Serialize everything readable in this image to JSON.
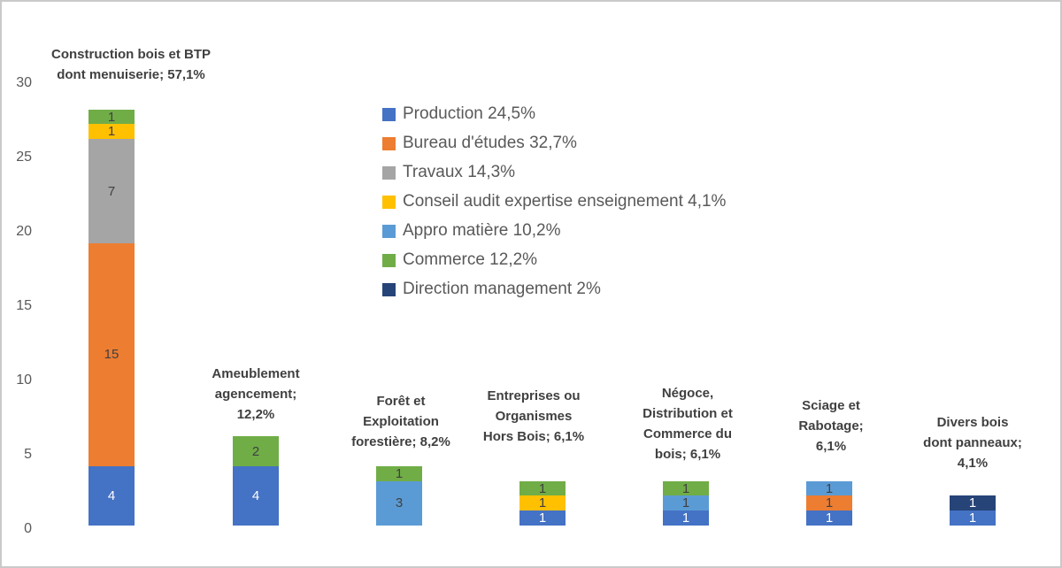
{
  "chart_data": {
    "type": "stacked-bar",
    "title": "",
    "gridlines": false,
    "legend_position": "upper-center",
    "legend_text_color": "#595959",
    "axis_text_color": "#595959",
    "category_label_color": "#404040",
    "y_axis": {
      "min": 0,
      "max": 30,
      "tick_interval": 5,
      "ticks": [
        "0",
        "5",
        "10",
        "15",
        "20",
        "25",
        "30"
      ]
    },
    "categories": [
      {
        "id": "construction-bois-btp",
        "label_lines": [
          "Construction bois et BTP",
          "dont menuiserie; 57,1%"
        ],
        "percent": "57,1%",
        "total": 28
      },
      {
        "id": "ameublement-agencement",
        "label_lines": [
          "Ameublement",
          "agencement;",
          "12,2%"
        ],
        "percent": "12,2%",
        "total": 6
      },
      {
        "id": "foret-exploitation-forestiere",
        "label_lines": [
          "Forêt et",
          "Exploitation",
          "forestière; 8,2%"
        ],
        "percent": "8,2%",
        "total": 4
      },
      {
        "id": "entreprises-organismes-hors-bois",
        "label_lines": [
          "Entreprises ou",
          "Organismes",
          "Hors Bois; 6,1%"
        ],
        "percent": "6,1%",
        "total": 3
      },
      {
        "id": "negoce-distribution-commerce-bois",
        "label_lines": [
          "Négoce,",
          "Distribution et",
          "Commerce du",
          "bois; 6,1%"
        ],
        "percent": "6,1%",
        "total": 3
      },
      {
        "id": "sciage-rabotage",
        "label_lines": [
          "Sciage et",
          "Rabotage;",
          "6,1%"
        ],
        "percent": "6,1%",
        "total": 3
      },
      {
        "id": "divers-bois-panneaux",
        "label_lines": [
          "Divers bois",
          "dont panneaux;",
          "4,1%"
        ],
        "percent": "4,1%",
        "total": 2
      }
    ],
    "series": [
      {
        "id": "production",
        "name": "Production",
        "legend_label": "Production 24,5%",
        "percent": "24,5%",
        "color": "#4472C4",
        "value_text_color": "#FFFFFF",
        "values": [
          4,
          4,
          0,
          1,
          1,
          1,
          1
        ]
      },
      {
        "id": "bureau-etudes",
        "name": "Bureau d'études",
        "legend_label": "Bureau d'études 32,7%",
        "percent": "32,7%",
        "color": "#ED7D31",
        "value_text_color": "#404040",
        "values": [
          15,
          0,
          0,
          0,
          0,
          1,
          0
        ]
      },
      {
        "id": "travaux",
        "name": "Travaux",
        "legend_label": "Travaux 14,3%",
        "percent": "14,3%",
        "color": "#A5A5A5",
        "value_text_color": "#404040",
        "values": [
          7,
          0,
          0,
          0,
          0,
          0,
          0
        ]
      },
      {
        "id": "conseil-audit-expertise-enseignement",
        "name": "Conseil audit expertise enseignement",
        "legend_label": "Conseil audit expertise enseignement 4,1%",
        "percent": "4,1%",
        "color": "#FFC000",
        "value_text_color": "#404040",
        "values": [
          1,
          0,
          0,
          1,
          0,
          0,
          0
        ]
      },
      {
        "id": "appro-matiere",
        "name": "Appro matière",
        "legend_label": "Appro matière 10,2%",
        "percent": "10,2%",
        "color": "#5B9BD5",
        "value_text_color": "#404040",
        "values": [
          0,
          0,
          3,
          0,
          1,
          1,
          0
        ]
      },
      {
        "id": "commerce",
        "name": "Commerce",
        "legend_label": "Commerce 12,2%",
        "percent": "12,2%",
        "color": "#70AD47",
        "value_text_color": "#404040",
        "values": [
          1,
          2,
          1,
          1,
          1,
          0,
          0
        ]
      },
      {
        "id": "direction-management",
        "name": "Direction management",
        "legend_label": "Direction management 2%",
        "percent": "2%",
        "color": "#264478",
        "value_text_color": "#FFFFFF",
        "values": [
          0,
          0,
          0,
          0,
          0,
          0,
          1
        ]
      }
    ]
  }
}
